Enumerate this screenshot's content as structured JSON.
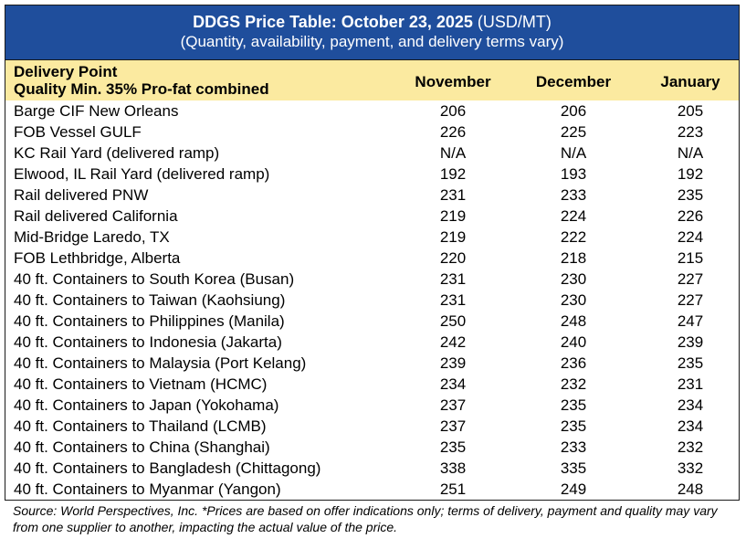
{
  "title": {
    "bold": "DDGS Price Table: October 23, 2025",
    "unit": "(USD/MT)",
    "subtitle": "(Quantity, availability, payment, and delivery terms vary)"
  },
  "header": {
    "delivery_point": "Delivery Point",
    "quality": "Quality Min. 35% Pro-fat combined",
    "columns": [
      "November",
      "December",
      "January"
    ]
  },
  "rows": [
    {
      "point": "Barge CIF New Orleans",
      "nov": "206",
      "dec": "206",
      "jan": "205"
    },
    {
      "point": "FOB Vessel GULF",
      "nov": "226",
      "dec": "225",
      "jan": "223"
    },
    {
      "point": "KC Rail Yard (delivered ramp)",
      "nov": "N/A",
      "dec": "N/A",
      "jan": "N/A"
    },
    {
      "point": "Elwood, IL Rail Yard (delivered ramp)",
      "nov": "192",
      "dec": "193",
      "jan": "192"
    },
    {
      "point": "Rail delivered PNW",
      "nov": "231",
      "dec": "233",
      "jan": "235"
    },
    {
      "point": "Rail delivered California",
      "nov": "219",
      "dec": "224",
      "jan": "226"
    },
    {
      "point": "Mid-Bridge Laredo, TX",
      "nov": "219",
      "dec": "222",
      "jan": "224"
    },
    {
      "point": "FOB Lethbridge, Alberta",
      "nov": "220",
      "dec": "218",
      "jan": "215"
    },
    {
      "point": "40 ft. Containers to South Korea (Busan)",
      "nov": "231",
      "dec": "230",
      "jan": "227"
    },
    {
      "point": "40 ft. Containers to Taiwan (Kaohsiung)",
      "nov": "231",
      "dec": "230",
      "jan": "227"
    },
    {
      "point": "40 ft. Containers to Philippines (Manila)",
      "nov": "250",
      "dec": "248",
      "jan": "247"
    },
    {
      "point": "40 ft. Containers to Indonesia (Jakarta)",
      "nov": "242",
      "dec": "240",
      "jan": "239"
    },
    {
      "point": "40 ft. Containers to Malaysia (Port Kelang)",
      "nov": "239",
      "dec": "236",
      "jan": "235"
    },
    {
      "point": "40 ft. Containers to Vietnam (HCMC)",
      "nov": "234",
      "dec": "232",
      "jan": "231"
    },
    {
      "point": "40 ft. Containers to Japan (Yokohama)",
      "nov": "237",
      "dec": "235",
      "jan": "234"
    },
    {
      "point": "40 ft. Containers to Thailand (LCMB)",
      "nov": "237",
      "dec": "235",
      "jan": "234"
    },
    {
      "point": "40 ft. Containers to China (Shanghai)",
      "nov": "235",
      "dec": "233",
      "jan": "232"
    },
    {
      "point": "40 ft. Containers to Bangladesh (Chittagong)",
      "nov": "338",
      "dec": "335",
      "jan": "332"
    },
    {
      "point": "40 ft. Containers to Myanmar (Yangon)",
      "nov": "251",
      "dec": "249",
      "jan": "248"
    }
  ],
  "source": "Source: World Perspectives, Inc. *Prices are based on offer indications only; terms of delivery, payment and quality may vary from one supplier to another, impacting the actual value of the price.",
  "colors": {
    "title_bg": "#1f4e9c",
    "header_bg": "#fbeaa0"
  }
}
